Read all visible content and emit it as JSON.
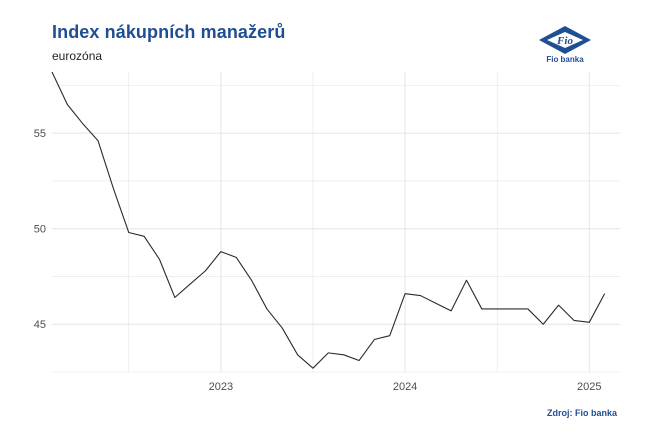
{
  "header": {
    "title": "Index nákupních manažerů",
    "subtitle": "eurozóna",
    "logo_label": "Fio banka"
  },
  "footer": {
    "source": "Zdroj: Fio banka"
  },
  "colors": {
    "title": "#1f4e93",
    "line": "#2b2b2b",
    "grid": "#e4e4e4"
  },
  "chart_data": {
    "type": "line",
    "title": "Index nákupních manažerů",
    "subtitle": "eurozóna",
    "xlabel": "",
    "ylabel": "",
    "xlim": [
      "2022-02-01",
      "2025-03-01"
    ],
    "ylim": [
      42.5,
      58.2
    ],
    "x_ticks": [
      "2023-01-01",
      "2024-01-01",
      "2025-01-01"
    ],
    "x_tick_labels": [
      "2023",
      "2024",
      "2025"
    ],
    "y_ticks": [
      45,
      50,
      55
    ],
    "grid": true,
    "legend": "none",
    "series": [
      {
        "x": [
          "2022-02-01",
          "2022-03-01",
          "2022-04-01",
          "2022-05-01",
          "2022-06-01",
          "2022-07-01",
          "2022-08-01",
          "2022-09-01",
          "2022-10-01",
          "2022-11-01",
          "2022-12-01",
          "2023-01-01",
          "2023-02-01",
          "2023-03-01",
          "2023-04-01",
          "2023-05-01",
          "2023-06-01",
          "2023-07-01",
          "2023-08-01",
          "2023-09-01",
          "2023-10-01",
          "2023-11-01",
          "2023-12-01",
          "2024-01-01",
          "2024-02-01",
          "2024-03-01",
          "2024-04-01",
          "2024-05-01",
          "2024-06-01",
          "2024-07-01",
          "2024-08-01",
          "2024-09-01",
          "2024-10-01",
          "2024-11-01",
          "2024-12-01",
          "2025-01-01",
          "2025-02-01"
        ],
        "values": [
          58.2,
          56.5,
          55.5,
          54.6,
          52.1,
          49.8,
          49.6,
          48.4,
          46.4,
          47.1,
          47.8,
          48.8,
          48.5,
          47.3,
          45.8,
          44.8,
          43.4,
          42.7,
          43.5,
          43.4,
          43.1,
          44.2,
          44.4,
          46.6,
          46.5,
          46.1,
          45.7,
          47.3,
          45.8,
          45.8,
          45.8,
          45.8,
          45.0,
          46.0,
          45.2,
          45.1,
          46.6
        ]
      }
    ]
  }
}
